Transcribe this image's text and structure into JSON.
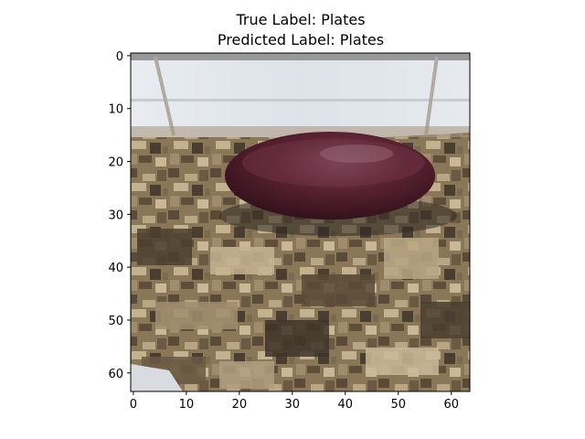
{
  "figure": {
    "title_line1": "True Label: Plates",
    "title_line2": "Predicted Label: Plates"
  },
  "image_content": {
    "description_tags": [
      "maroon-bowl",
      "granite-countertop",
      "white-cabinet"
    ],
    "colors": {
      "bowl_dark": "#3a1420",
      "bowl_mid": "#5a2232",
      "bowl_light": "#8c5a6c",
      "granite_base": "#8c7a5e",
      "granite_dark": "#4a3e30",
      "granite_light": "#c8b898",
      "cabinet": "#e4e8ec"
    }
  },
  "axes": {
    "x_ticks": [
      "0",
      "10",
      "20",
      "30",
      "40",
      "50",
      "60"
    ],
    "y_ticks": [
      "0",
      "10",
      "20",
      "30",
      "40",
      "50",
      "60"
    ],
    "x_range": [
      -0.5,
      63.5
    ],
    "y_range": [
      -0.5,
      63.5
    ]
  }
}
